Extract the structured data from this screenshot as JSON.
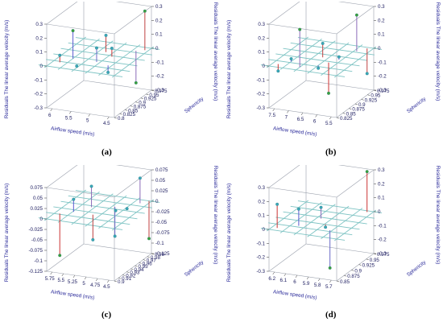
{
  "chart_data": [
    {
      "type": "scatter",
      "label": "(a)",
      "xlabel": "Airflow speed (m/s)",
      "ylabel": "Sphericity",
      "zlabel_left": "Residuals The linear average velocity  (m/s)",
      "zlabel_right": "Residuals The linear average velocity  (m/s)",
      "x_ticks": [
        "6",
        "5.5",
        "5",
        "4.5"
      ],
      "y_ticks": [
        "0.975",
        "0.95",
        "0.925",
        "0.9",
        "0.875",
        "0.85",
        "0.825",
        "0.8"
      ],
      "z_ticks": [
        "0.3",
        "0.2",
        "0.1",
        "0",
        "-0.1",
        "-0.2",
        "-0.3"
      ],
      "xlim": [
        4.3,
        6.3
      ],
      "ylim": [
        0.8,
        0.975
      ],
      "zlim": [
        -0.3,
        0.3
      ],
      "grid": true,
      "points": [
        {
          "x": 6.1,
          "y": 0.83,
          "z": 0.05
        },
        {
          "x": 5.9,
          "y": 0.86,
          "z": 0.2
        },
        {
          "x": 5.6,
          "y": 0.83,
          "z": -0.01
        },
        {
          "x": 5.3,
          "y": 0.92,
          "z": 0.12
        },
        {
          "x": 5.2,
          "y": 0.86,
          "z": 0.1
        },
        {
          "x": 5.0,
          "y": 0.9,
          "z": 0.06
        },
        {
          "x": 4.8,
          "y": 0.85,
          "z": -0.05
        },
        {
          "x": 4.6,
          "y": 0.95,
          "z": -0.23
        },
        {
          "x": 4.4,
          "y": 0.96,
          "z": 0.28
        }
      ]
    },
    {
      "type": "scatter",
      "label": "(b)",
      "xlabel": "Airflow speed (m/s)",
      "ylabel": "Sphericity",
      "zlabel_left": "Residuals The linear average velocity  (m/s)",
      "zlabel_right": "Residuals The linear average velocity  (m/s)",
      "x_ticks": [
        "7.5",
        "7",
        "6.5",
        "6",
        "5.5"
      ],
      "y_ticks": [
        "0.975",
        "0.95",
        "0.925",
        "0.9",
        "0.875",
        "0.85",
        "0.825"
      ],
      "z_ticks": [
        "0.3",
        "0.2",
        "0.1",
        "0",
        "-0.1",
        "-0.2",
        "-0.3"
      ],
      "xlim": [
        5.3,
        7.8
      ],
      "ylim": [
        0.825,
        0.975
      ],
      "zlim": [
        -0.3,
        0.3
      ],
      "grid": true,
      "points": [
        {
          "x": 7.6,
          "y": 0.84,
          "z": -0.05
        },
        {
          "x": 7.3,
          "y": 0.86,
          "z": 0.02
        },
        {
          "x": 6.8,
          "y": 0.84,
          "z": 0.27
        },
        {
          "x": 6.5,
          "y": 0.9,
          "z": 0.1
        },
        {
          "x": 6.3,
          "y": 0.86,
          "z": -0.02
        },
        {
          "x": 6.1,
          "y": 0.88,
          "z": -0.22
        },
        {
          "x": 5.9,
          "y": 0.9,
          "z": 0.02
        },
        {
          "x": 5.7,
          "y": 0.95,
          "z": 0.26
        },
        {
          "x": 5.5,
          "y": 0.97,
          "z": -0.18
        }
      ]
    },
    {
      "type": "scatter",
      "label": "(c)",
      "xlabel": "Airflow speed (m/s)",
      "ylabel": "Sphericity",
      "zlabel_left": "Residuals The linear average velocity  (m/s)",
      "zlabel_right": "Residuals The linear average velocity  (m/s)",
      "x_ticks": [
        "5.75",
        "5.5",
        "5.25",
        "5",
        "4.75",
        "4.5"
      ],
      "y_ticks": [
        "0.99",
        "0.98",
        "0.97",
        "0.96",
        "0.95",
        "0.94",
        "0.93",
        "0.92",
        "0.91",
        "0.9"
      ],
      "z_ticks": [
        "0.075",
        "0.05",
        "0.025",
        "0",
        "-0.025",
        "-0.05",
        "-0.075",
        "-0.1",
        "-0.125"
      ],
      "xlim": [
        4.45,
        5.85
      ],
      "ylim": [
        0.9,
        0.99
      ],
      "zlim": [
        -0.125,
        0.075
      ],
      "grid": true,
      "points": [
        {
          "x": 5.75,
          "y": 0.92,
          "z": -0.1
        },
        {
          "x": 5.55,
          "y": 0.93,
          "z": 0.03
        },
        {
          "x": 5.35,
          "y": 0.95,
          "z": 0.05
        },
        {
          "x": 5.15,
          "y": 0.93,
          "z": -0.06
        },
        {
          "x": 4.95,
          "y": 0.96,
          "z": -0.07
        },
        {
          "x": 4.85,
          "y": 0.95,
          "z": 0.0
        },
        {
          "x": 4.7,
          "y": 0.96,
          "z": 0.0
        },
        {
          "x": 4.6,
          "y": 0.98,
          "z": 0.06
        },
        {
          "x": 4.5,
          "y": 0.99,
          "z": -0.09
        }
      ]
    },
    {
      "type": "scatter",
      "label": "(d)",
      "xlabel": "Airflow speed (m/s)",
      "ylabel": "Sphericity",
      "zlabel_left": "Residuals The linear average velocity  (m/s)",
      "zlabel_right": "Residuals The linear average velocity  (m/s)",
      "x_ticks": [
        "6.2",
        "6.1",
        "6",
        "5.9",
        "5.8",
        "5.7"
      ],
      "y_ticks": [
        "0.975",
        "0.95",
        "0.925",
        "0.9",
        "0.875",
        "0.85"
      ],
      "z_ticks": [
        "0.3",
        "0.2",
        "0.1",
        "0",
        "-0.1",
        "-0.2",
        "-0.3"
      ],
      "xlim": [
        5.65,
        6.3
      ],
      "ylim": [
        0.85,
        0.975
      ],
      "zlim": [
        -0.3,
        0.3
      ],
      "grid": true,
      "points": [
        {
          "x": 6.25,
          "y": 0.86,
          "z": 0.17
        },
        {
          "x": 6.1,
          "y": 0.88,
          "z": 0.12
        },
        {
          "x": 6.0,
          "y": 0.92,
          "z": 0.08
        },
        {
          "x": 5.9,
          "y": 0.9,
          "z": -0.02
        },
        {
          "x": 5.8,
          "y": 0.88,
          "z": -0.27
        },
        {
          "x": 5.7,
          "y": 0.97,
          "z": 0.29
        }
      ]
    }
  ]
}
